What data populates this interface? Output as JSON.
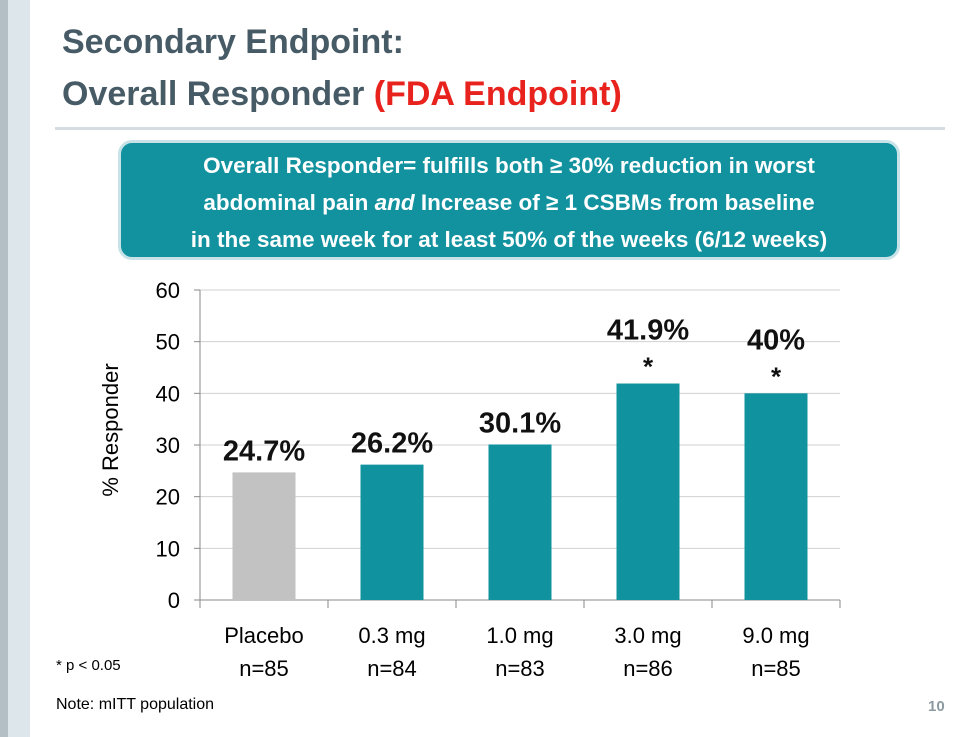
{
  "slide": {
    "title_line1": "Secondary Endpoint:",
    "title_line2": "Overall Responder ",
    "title_accent": "(FDA Endpoint)",
    "page_number": "10"
  },
  "callout": {
    "line1": "Overall Responder= fulfills both ≥ 30% reduction in worst",
    "line2_a": "abdominal pain ",
    "line2_em": "and",
    "line2_b": " Increase of ≥ 1 CSBMs from baseline",
    "line3": "in the same week for at least 50% of the weeks (6/12 weeks)"
  },
  "chart_data": {
    "type": "bar",
    "categories": [
      "Placebo",
      "0.3 mg",
      "1.0 mg",
      "3.0 mg",
      "9.0 mg"
    ],
    "sample_sizes": [
      "n=85",
      "n=84",
      "n=83",
      "n=86",
      "n=85"
    ],
    "values": [
      24.7,
      26.2,
      30.1,
      41.9,
      40
    ],
    "data_labels": [
      "24.7%",
      "26.2%",
      "30.1%",
      "41.9%",
      "40%"
    ],
    "significance": [
      "",
      "",
      "",
      "*",
      "*"
    ],
    "ylabel": "% Responder",
    "ylim": [
      0,
      60
    ],
    "yticks": [
      0,
      10,
      20,
      30,
      40,
      50,
      60
    ],
    "grid": true,
    "colors": {
      "placebo": "#c2c2c2",
      "treatment": "#11929f",
      "grid": "#d0d0d0",
      "axis": "#8a8a8a"
    }
  },
  "footnote": "* p < 0.05",
  "note": "Note: mITT population"
}
